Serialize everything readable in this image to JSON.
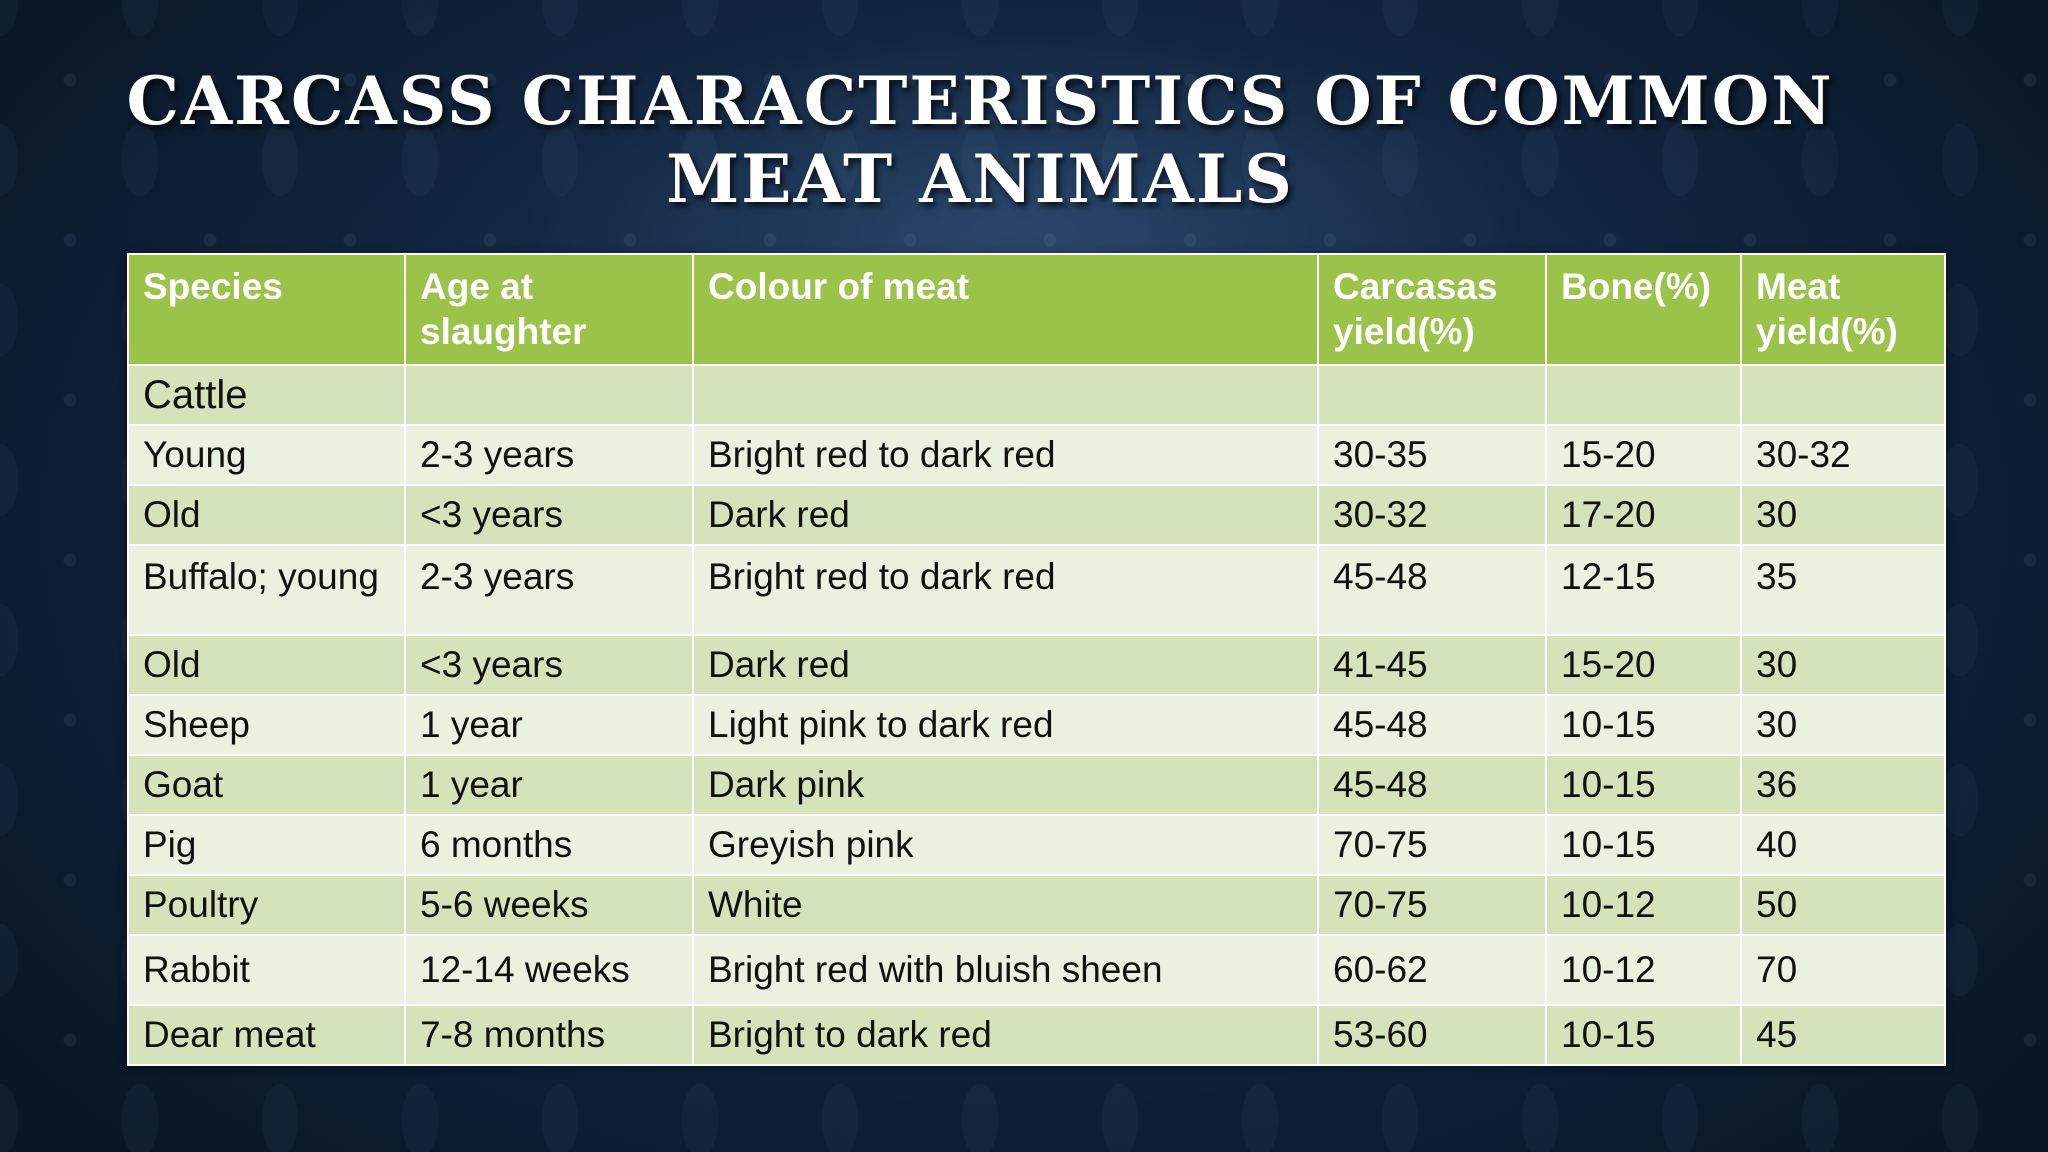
{
  "slide": {
    "title_line1": "CARCASS CHARACTERISTICS OF COMMON",
    "title_line2": "MEAT ANIMALS"
  },
  "colors": {
    "header_bg": "#9bc34a",
    "row_dark": "#d4e3b9",
    "row_light": "#eaf1de",
    "background": "#10223a"
  },
  "table": {
    "headers": [
      "Species",
      "Age at slaughter",
      "Colour of meat",
      "Carcasas yield(%)",
      "Bone(%)",
      "Meat yield(%)"
    ],
    "rows": [
      [
        "Cattle",
        "",
        "",
        "",
        "",
        ""
      ],
      [
        "Young",
        "2-3 years",
        "Bright red to dark red",
        "30-35",
        "15-20",
        "30-32"
      ],
      [
        "Old",
        "<3 years",
        "Dark red",
        "30-32",
        "17-20",
        "30"
      ],
      [
        "Buffalo; young",
        "2-3 years",
        "Bright red to dark red",
        "45-48",
        "12-15",
        "35"
      ],
      [
        "Old",
        "<3 years",
        "Dark red",
        "41-45",
        "15-20",
        "30"
      ],
      [
        "Sheep",
        "1 year",
        "Light pink to dark red",
        "45-48",
        "10-15",
        "30"
      ],
      [
        "Goat",
        "1 year",
        "Dark pink",
        "45-48",
        "10-15",
        "36"
      ],
      [
        "Pig",
        "6 months",
        "Greyish pink",
        "70-75",
        "10-15",
        "40"
      ],
      [
        "Poultry",
        "5-6 weeks",
        "White",
        "70-75",
        "10-12",
        "50"
      ],
      [
        "Rabbit",
        "12-14 weeks",
        "Bright red with bluish sheen",
        "60-62",
        "10-12",
        "70"
      ],
      [
        "Dear meat",
        "7-8 months",
        "Bright to dark red",
        "53-60",
        "10-15",
        "45"
      ]
    ]
  }
}
